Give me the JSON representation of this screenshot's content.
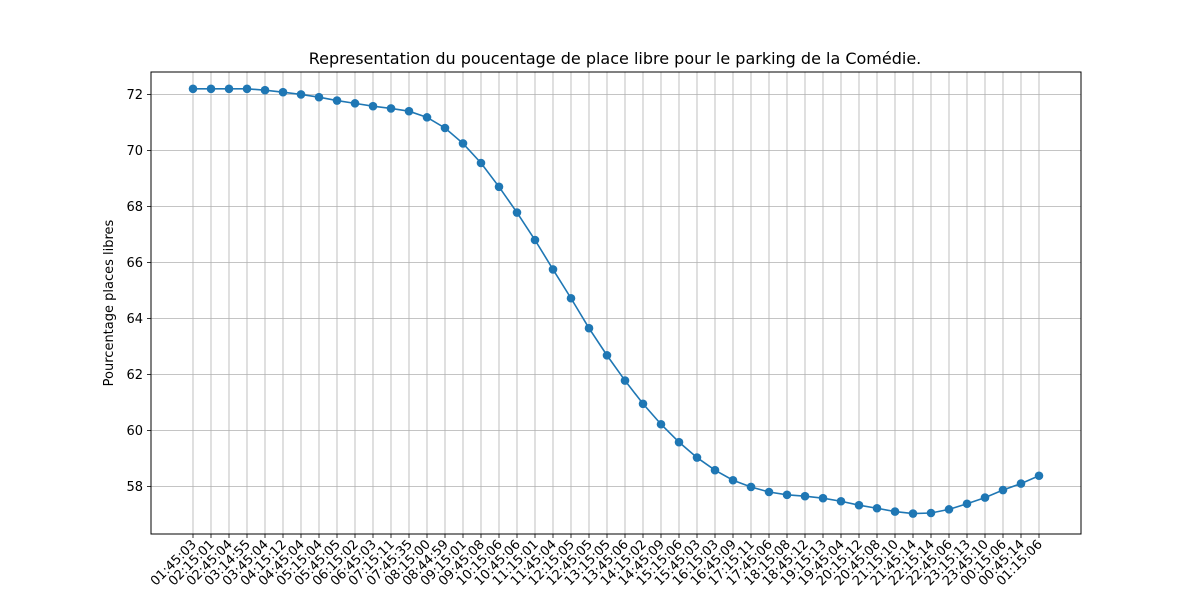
{
  "chart_data": {
    "type": "line",
    "title": "Representation du poucentage de place libre pour le parking de la Comédie.",
    "xlabel": "",
    "ylabel": "Pourcentage places libres",
    "grid": true,
    "ylim": [
      56.3,
      72.8
    ],
    "yticks": [
      58,
      60,
      62,
      64,
      66,
      68,
      70,
      72
    ],
    "color": "#1f77b4",
    "marker": "circle",
    "categories": [
      "01:45:03",
      "02:15:01",
      "02:45:04",
      "03:14:55",
      "03:45:04",
      "04:15:12",
      "04:45:04",
      "05:15:04",
      "05:45:05",
      "06:15:02",
      "06:45:03",
      "07:15:11",
      "07:45:35",
      "08:15:00",
      "08:44:59",
      "09:15:01",
      "09:45:08",
      "10:15:06",
      "10:45:06",
      "11:15:01",
      "11:45:04",
      "12:15:05",
      "12:45:05",
      "13:15:05",
      "13:45:06",
      "14:15:02",
      "14:45:09",
      "15:15:06",
      "15:45:03",
      "16:15:03",
      "16:45:09",
      "17:15:11",
      "17:45:06",
      "18:15:08",
      "18:45:12",
      "19:15:13",
      "19:45:04",
      "20:15:12",
      "20:45:08",
      "21:15:10",
      "21:45:14",
      "22:15:14",
      "22:45:06",
      "23:15:13",
      "23:45:10",
      "00:15:06",
      "00:45:14",
      "01:15:06"
    ],
    "values": [
      72.2,
      72.2,
      72.2,
      72.2,
      72.15,
      72.08,
      72.0,
      71.9,
      71.78,
      71.68,
      71.58,
      71.5,
      71.4,
      71.18,
      70.8,
      70.25,
      69.55,
      68.7,
      67.78,
      66.8,
      65.75,
      64.72,
      63.65,
      62.68,
      61.78,
      60.95,
      60.22,
      59.58,
      59.03,
      58.58,
      58.22,
      57.98,
      57.8,
      57.7,
      57.65,
      57.58,
      57.47,
      57.33,
      57.22,
      57.1,
      57.03,
      57.05,
      57.18,
      57.38,
      57.6,
      57.87,
      58.1,
      58.38
    ]
  }
}
